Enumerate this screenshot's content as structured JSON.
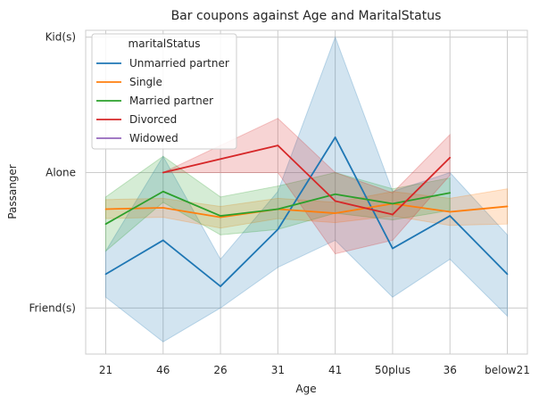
{
  "chart_data": {
    "type": "line",
    "title": "Bar coupons against Age and MaritalStatus",
    "xlabel": "Age",
    "ylabel": "Passanger",
    "categories": [
      "21",
      "46",
      "26",
      "31",
      "41",
      "50plus",
      "36",
      "below21"
    ],
    "y_ticks": [
      "Friend(s)",
      "Alone",
      "Kid(s)"
    ],
    "y_tick_values": [
      0,
      1,
      2
    ],
    "ylim": [
      -0.34,
      2.05
    ],
    "grid": true,
    "legend": {
      "title": "maritalStatus",
      "placement": "top-left"
    },
    "series": [
      {
        "name": "Unmarried partner",
        "color": "#1f77b4",
        "x": [
          "21",
          "46",
          "26",
          "31",
          "41",
          "50plus",
          "36",
          "below21"
        ],
        "values": [
          0.25,
          0.5,
          0.16,
          0.58,
          1.26,
          0.44,
          0.68,
          0.25
        ],
        "ci_low": [
          0.08,
          -0.25,
          0.0,
          0.3,
          0.5,
          0.08,
          0.36,
          -0.06
        ],
        "ci_high": [
          0.42,
          1.12,
          0.36,
          0.86,
          2.0,
          0.86,
          1.0,
          0.54
        ]
      },
      {
        "name": "Single",
        "color": "#ff7f0e",
        "x": [
          "21",
          "46",
          "26",
          "31",
          "41",
          "50plus",
          "36",
          "below21"
        ],
        "values": [
          0.73,
          0.74,
          0.67,
          0.73,
          0.7,
          0.77,
          0.71,
          0.75
        ],
        "ci_low": [
          0.66,
          0.67,
          0.59,
          0.66,
          0.63,
          0.68,
          0.61,
          0.62
        ],
        "ci_high": [
          0.8,
          0.81,
          0.75,
          0.81,
          0.78,
          0.86,
          0.81,
          0.88
        ]
      },
      {
        "name": "Married partner",
        "color": "#2ca02c",
        "x": [
          "21",
          "46",
          "26",
          "31",
          "41",
          "50plus",
          "36"
        ],
        "values": [
          0.62,
          0.86,
          0.68,
          0.73,
          0.84,
          0.77,
          0.85
        ],
        "ci_low": [
          0.42,
          0.78,
          0.54,
          0.58,
          0.7,
          0.65,
          0.72
        ],
        "ci_high": [
          0.82,
          1.12,
          0.82,
          0.9,
          1.0,
          0.88,
          0.96
        ]
      },
      {
        "name": "Divorced",
        "color": "#d62728",
        "x": [
          "46",
          "31",
          "41",
          "50plus",
          "36"
        ],
        "values": [
          1.0,
          1.2,
          0.79,
          0.69,
          1.11
        ],
        "ci_low": [
          1.0,
          1.0,
          0.4,
          0.5,
          0.98
        ],
        "ci_high": [
          1.0,
          1.4,
          1.0,
          0.85,
          1.28
        ]
      },
      {
        "name": "Widowed",
        "color": "#9467bd",
        "x": [],
        "values": [],
        "ci_low": [],
        "ci_high": []
      }
    ]
  }
}
